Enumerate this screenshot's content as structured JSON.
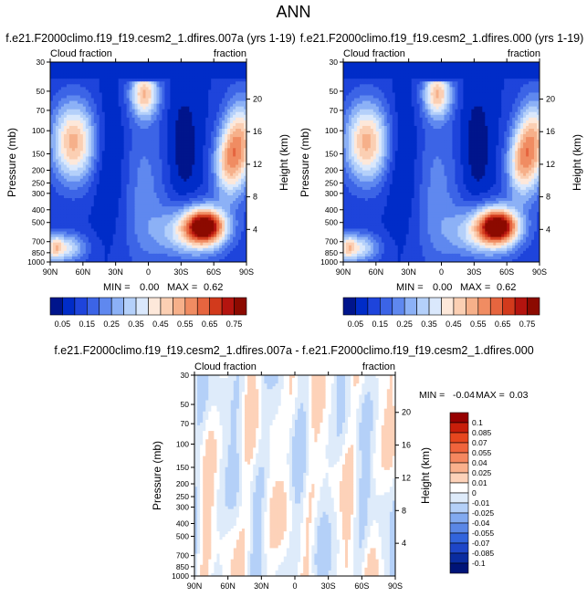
{
  "figure_title": "ANN",
  "chart_data": [
    {
      "type": "heatmap",
      "id": "p1",
      "title": "f.e21.F2000climo.f19_f19.cesm2_1.dfires.007a (yrs 1-19)",
      "left_label": "Cloud fraction",
      "right_label": "fraction",
      "ylabel": "Pressure (mb)",
      "y2label": "Height (km)",
      "x_ticks": [
        "90N",
        "60N",
        "30N",
        "0",
        "30S",
        "60S",
        "90S"
      ],
      "y_ticks": [
        "30",
        "50",
        "70",
        "100",
        "150",
        "200",
        "250",
        "300",
        "400",
        "500",
        "700",
        "850",
        "1000"
      ],
      "y_tick_values": [
        30,
        50,
        70,
        100,
        150,
        200,
        250,
        300,
        400,
        500,
        700,
        850,
        1000
      ],
      "y2_ticks": [
        "20",
        "16",
        "12",
        "8",
        "4"
      ],
      "y2_tick_values": [
        20,
        16,
        12,
        8,
        4
      ],
      "ylim": [
        30,
        1000
      ],
      "stats": {
        "min_label": "MIN =",
        "min": "0.00",
        "max_label": "MAX =",
        "max": "0.62"
      },
      "levels": [
        "0.05",
        "0.1",
        "0.15",
        "0.2",
        "0.25",
        "0.3",
        "0.35",
        "0.4",
        "0.45",
        "0.5",
        "0.55",
        "0.6",
        "0.65",
        "0.7",
        "0.75"
      ],
      "levels_shown": [
        "0.05",
        "0.15",
        "0.25",
        "0.35",
        "0.45",
        "0.55",
        "0.65",
        "0.75"
      ],
      "colors": [
        "#00158c",
        "#002cc8",
        "#1e44db",
        "#3c64e6",
        "#5f88ef",
        "#8cb1f6",
        "#b4d0fa",
        "#dae8fc",
        "#fde8da",
        "#fbcfb3",
        "#f6b08a",
        "#f08c62",
        "#e6653f",
        "#d23a1c",
        "#b4140f",
        "#8c0a00"
      ]
    },
    {
      "type": "heatmap",
      "id": "p2",
      "title": "f.e21.F2000climo.f19_f19.cesm2_1.dfires.000 (yrs 1-19)",
      "left_label": "Cloud fraction",
      "right_label": "fraction",
      "ylabel": "Pressure (mb)",
      "y2label": "Height (km)",
      "x_ticks": [
        "90N",
        "60N",
        "30N",
        "0",
        "30S",
        "60S",
        "90S"
      ],
      "y_ticks": [
        "30",
        "50",
        "70",
        "100",
        "150",
        "200",
        "250",
        "300",
        "400",
        "500",
        "700",
        "850",
        "1000"
      ],
      "y_tick_values": [
        30,
        50,
        70,
        100,
        150,
        200,
        250,
        300,
        400,
        500,
        700,
        850,
        1000
      ],
      "y2_ticks": [
        "20",
        "16",
        "12",
        "8",
        "4"
      ],
      "y2_tick_values": [
        20,
        16,
        12,
        8,
        4
      ],
      "ylim": [
        30,
        1000
      ],
      "stats": {
        "min_label": "MIN =",
        "min": "0.00",
        "max_label": "MAX =",
        "max": "0.62"
      },
      "levels": [
        "0.05",
        "0.1",
        "0.15",
        "0.2",
        "0.25",
        "0.3",
        "0.35",
        "0.4",
        "0.45",
        "0.5",
        "0.55",
        "0.6",
        "0.65",
        "0.7",
        "0.75"
      ],
      "levels_shown": [
        "0.05",
        "0.15",
        "0.25",
        "0.35",
        "0.45",
        "0.55",
        "0.65",
        "0.75"
      ],
      "colors": [
        "#00158c",
        "#002cc8",
        "#1e44db",
        "#3c64e6",
        "#5f88ef",
        "#8cb1f6",
        "#b4d0fa",
        "#dae8fc",
        "#fde8da",
        "#fbcfb3",
        "#f6b08a",
        "#f08c62",
        "#e6653f",
        "#d23a1c",
        "#b4140f",
        "#8c0a00"
      ]
    },
    {
      "type": "heatmap",
      "id": "p3",
      "title": "f.e21.F2000climo.f19_f19.cesm2_1.dfires.007a - f.e21.F2000climo.f19_f19.cesm2_1.dfires.000",
      "left_label": "Cloud fraction",
      "right_label": "fraction",
      "ylabel": "Pressure (mb)",
      "y2label": "Height (km)",
      "x_ticks": [
        "90N",
        "60N",
        "30N",
        "0",
        "30S",
        "60S",
        "90S"
      ],
      "y_ticks": [
        "30",
        "50",
        "70",
        "100",
        "150",
        "200",
        "250",
        "300",
        "400",
        "500",
        "700",
        "850",
        "1000"
      ],
      "y_tick_values": [
        30,
        50,
        70,
        100,
        150,
        200,
        250,
        300,
        400,
        500,
        700,
        850,
        1000
      ],
      "y2_ticks": [
        "20",
        "16",
        "12",
        "8",
        "4"
      ],
      "y2_tick_values": [
        20,
        16,
        12,
        8,
        4
      ],
      "ylim": [
        30,
        1000
      ],
      "stats": {
        "min_label": "MIN =",
        "min": "-0.04",
        "max_label": "MAX =",
        "max": "0.03"
      },
      "levels": [
        "0.1",
        "0.085",
        "0.07",
        "0.055",
        "0.04",
        "0.025",
        "0.01",
        "0",
        "-0.01",
        "-0.025",
        "-0.04",
        "-0.055",
        "-0.07",
        "-0.085",
        "-0.1"
      ],
      "colors": [
        "#960000",
        "#c81e0a",
        "#e6461e",
        "#f0643c",
        "#f5875f",
        "#fab08c",
        "#fdd2b9",
        "#ffffff",
        "#deebfa",
        "#b4d0f8",
        "#82aaf0",
        "#5a87e6",
        "#3264dc",
        "#1e46c8",
        "#0a2ca0",
        "#001478"
      ]
    }
  ]
}
